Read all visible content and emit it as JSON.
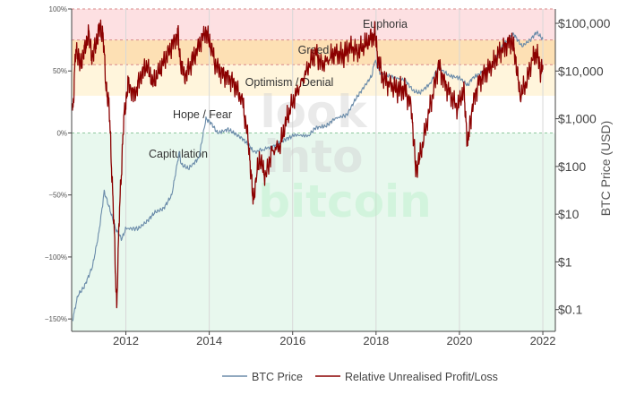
{
  "chart_data": {
    "type": "line",
    "title": "",
    "y_left": {
      "label": "",
      "range": [
        -160,
        100
      ],
      "ticks": [
        100,
        50,
        0,
        -50,
        -100,
        -150
      ],
      "tick_labels": [
        "100%",
        "50%",
        "0%",
        "−50%",
        "−100%",
        "−150%"
      ]
    },
    "y_right": {
      "label": "BTC Price (USD)",
      "scale": "log",
      "range": [
        0.035,
        200000
      ],
      "ticks": [
        100000,
        10000,
        1000,
        100,
        10,
        1,
        0.1
      ],
      "tick_labels": [
        "$100,000",
        "$10,000",
        "$1,000",
        "$100",
        "$10",
        "$1",
        "$0.1"
      ]
    },
    "x_axis": {
      "range": [
        2010.7,
        2022.3
      ],
      "ticks": [
        2012,
        2014,
        2016,
        2018,
        2020,
        2022
      ],
      "tick_labels": [
        "2012",
        "2014",
        "2016",
        "2018",
        "2020",
        "2022"
      ],
      "grid": true
    },
    "zones": [
      {
        "name": "Euphoria",
        "from": 75,
        "to": 100,
        "color": "#fde0e2"
      },
      {
        "name": "Greed",
        "from": 55,
        "to": 75,
        "color": "#fde0b4"
      },
      {
        "name": "Optimism / Denial",
        "from": 30,
        "to": 55,
        "color": "#fff5dc"
      },
      {
        "name": "Hope / Fear",
        "from": 0,
        "to": 30,
        "color": "#ffffff"
      },
      {
        "name": "Capitulation",
        "from": -160,
        "to": 0,
        "color": "#e8f8ee"
      }
    ],
    "zone_lines": [
      100,
      75,
      55,
      0
    ],
    "series": [
      {
        "name": "BTC Price",
        "axis": "right",
        "color": "#6b8caa",
        "points": [
          [
            2010.72,
            0.06
          ],
          [
            2010.85,
            0.2
          ],
          [
            2011.0,
            0.3
          ],
          [
            2011.2,
            0.8
          ],
          [
            2011.35,
            4
          ],
          [
            2011.45,
            18
          ],
          [
            2011.48,
            30
          ],
          [
            2011.6,
            14
          ],
          [
            2011.75,
            5
          ],
          [
            2011.9,
            3
          ],
          [
            2012.0,
            5
          ],
          [
            2012.3,
            5
          ],
          [
            2012.5,
            7
          ],
          [
            2012.7,
            11
          ],
          [
            2012.9,
            13
          ],
          [
            2013.1,
            25
          ],
          [
            2013.28,
            200
          ],
          [
            2013.33,
            110
          ],
          [
            2013.5,
            90
          ],
          [
            2013.75,
            150
          ],
          [
            2013.92,
            1000
          ],
          [
            2014.05,
            800
          ],
          [
            2014.2,
            500
          ],
          [
            2014.45,
            600
          ],
          [
            2014.6,
            500
          ],
          [
            2014.8,
            380
          ],
          [
            2015.0,
            250
          ],
          [
            2015.05,
            200
          ],
          [
            2015.4,
            240
          ],
          [
            2015.6,
            280
          ],
          [
            2015.85,
            380
          ],
          [
            2016.0,
            430
          ],
          [
            2016.4,
            460
          ],
          [
            2016.55,
            650
          ],
          [
            2016.8,
            700
          ],
          [
            2017.0,
            1000
          ],
          [
            2017.3,
            1200
          ],
          [
            2017.5,
            2500
          ],
          [
            2017.7,
            4500
          ],
          [
            2017.9,
            8000
          ],
          [
            2017.97,
            17000
          ],
          [
            2018.1,
            9000
          ],
          [
            2018.4,
            7500
          ],
          [
            2018.7,
            6400
          ],
          [
            2018.9,
            3800
          ],
          [
            2019.05,
            3500
          ],
          [
            2019.3,
            5500
          ],
          [
            2019.5,
            12000
          ],
          [
            2019.75,
            8000
          ],
          [
            2020.0,
            7200
          ],
          [
            2020.2,
            5000
          ],
          [
            2020.3,
            7000
          ],
          [
            2020.55,
            9500
          ],
          [
            2020.8,
            13000
          ],
          [
            2020.98,
            29000
          ],
          [
            2021.1,
            40000
          ],
          [
            2021.3,
            60000
          ],
          [
            2021.5,
            33000
          ],
          [
            2021.7,
            45000
          ],
          [
            2021.85,
            65000
          ],
          [
            2022.0,
            47000
          ]
        ]
      },
      {
        "name": "Relative Unrealised Profit/Loss",
        "axis": "left",
        "color": "#8b0000",
        "points": [
          [
            2010.72,
            15
          ],
          [
            2010.75,
            30
          ],
          [
            2010.8,
            70
          ],
          [
            2010.9,
            55
          ],
          [
            2011.0,
            65
          ],
          [
            2011.1,
            80
          ],
          [
            2011.2,
            60
          ],
          [
            2011.3,
            75
          ],
          [
            2011.38,
            85
          ],
          [
            2011.45,
            80
          ],
          [
            2011.52,
            40
          ],
          [
            2011.6,
            20
          ],
          [
            2011.65,
            -20
          ],
          [
            2011.72,
            -80
          ],
          [
            2011.78,
            -140
          ],
          [
            2011.85,
            -60
          ],
          [
            2011.95,
            10
          ],
          [
            2012.05,
            40
          ],
          [
            2012.2,
            30
          ],
          [
            2012.35,
            45
          ],
          [
            2012.5,
            55
          ],
          [
            2012.65,
            40
          ],
          [
            2012.8,
            50
          ],
          [
            2012.95,
            60
          ],
          [
            2013.1,
            70
          ],
          [
            2013.25,
            80
          ],
          [
            2013.3,
            60
          ],
          [
            2013.4,
            45
          ],
          [
            2013.55,
            55
          ],
          [
            2013.75,
            70
          ],
          [
            2013.9,
            82
          ],
          [
            2014.0,
            75
          ],
          [
            2014.15,
            55
          ],
          [
            2014.3,
            48
          ],
          [
            2014.45,
            45
          ],
          [
            2014.6,
            40
          ],
          [
            2014.8,
            25
          ],
          [
            2014.95,
            -10
          ],
          [
            2015.05,
            -55
          ],
          [
            2015.2,
            -20
          ],
          [
            2015.35,
            -35
          ],
          [
            2015.5,
            -15
          ],
          [
            2015.7,
            -10
          ],
          [
            2015.85,
            10
          ],
          [
            2016.0,
            25
          ],
          [
            2016.2,
            40
          ],
          [
            2016.4,
            55
          ],
          [
            2016.55,
            65
          ],
          [
            2016.7,
            55
          ],
          [
            2016.9,
            60
          ],
          [
            2017.0,
            65
          ],
          [
            2017.2,
            62
          ],
          [
            2017.4,
            70
          ],
          [
            2017.55,
            65
          ],
          [
            2017.7,
            70
          ],
          [
            2017.85,
            75
          ],
          [
            2017.97,
            80
          ],
          [
            2018.05,
            60
          ],
          [
            2018.15,
            45
          ],
          [
            2018.3,
            40
          ],
          [
            2018.5,
            35
          ],
          [
            2018.7,
            35
          ],
          [
            2018.85,
            20
          ],
          [
            2018.95,
            -30
          ],
          [
            2019.05,
            -20
          ],
          [
            2019.2,
            5
          ],
          [
            2019.35,
            30
          ],
          [
            2019.5,
            55
          ],
          [
            2019.65,
            40
          ],
          [
            2019.8,
            30
          ],
          [
            2019.95,
            20
          ],
          [
            2020.1,
            35
          ],
          [
            2020.2,
            -10
          ],
          [
            2020.3,
            20
          ],
          [
            2020.45,
            40
          ],
          [
            2020.6,
            48
          ],
          [
            2020.8,
            55
          ],
          [
            2020.95,
            65
          ],
          [
            2021.1,
            70
          ],
          [
            2021.25,
            75
          ],
          [
            2021.35,
            60
          ],
          [
            2021.45,
            30
          ],
          [
            2021.6,
            40
          ],
          [
            2021.75,
            60
          ],
          [
            2021.85,
            65
          ],
          [
            2021.95,
            50
          ],
          [
            2022.0,
            55
          ]
        ]
      }
    ],
    "legend": {
      "position": "bottom",
      "items": [
        "BTC Price",
        "Relative Unrealised Profit/Loss"
      ]
    },
    "watermark": [
      "look",
      "into",
      "bitcoin"
    ]
  }
}
